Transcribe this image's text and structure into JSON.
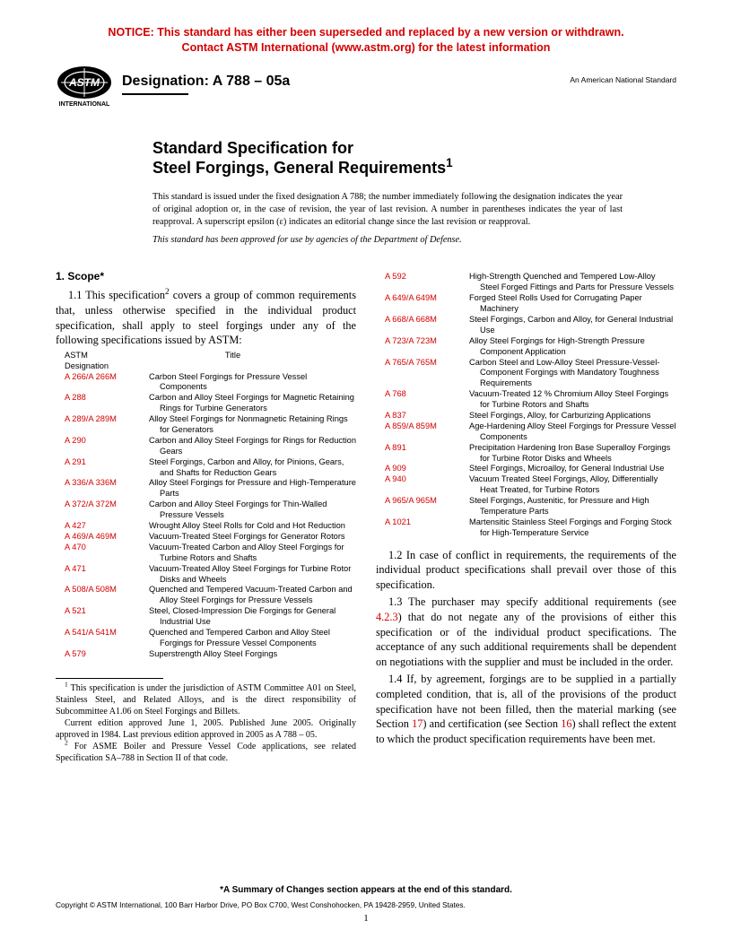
{
  "notice": {
    "line1": "NOTICE: This standard has either been superseded and replaced by a new version or withdrawn.",
    "line2": "Contact ASTM International (www.astm.org) for the latest information"
  },
  "header": {
    "designation_label": "Designation: A 788 – 05a",
    "ans_label": "An American National Standard",
    "logo_text_top": "ASTM",
    "logo_text_bottom": "INTERNATIONAL"
  },
  "title": {
    "line1": "Standard Specification for",
    "line2_main": "Steel Forgings, General Requirements",
    "line2_sup": "1"
  },
  "issuance": "This standard is issued under the fixed designation A 788; the number immediately following the designation indicates the year of original adoption or, in the case of revision, the year of last revision. A number in parentheses indicates the year of last reapproval. A superscript epsilon (ε) indicates an editorial change since the last revision or reapproval.",
  "dod": "This standard has been approved for use by agencies of the Department of Defense.",
  "scope": {
    "heading": "1. Scope*",
    "p1_a": "1.1 This specification",
    "p1_sup": "2",
    "p1_b": " covers a group of common requirements that, unless otherwise specified in the individual product specification, shall apply to steel forgings under any of the following specifications issued by ASTM:",
    "table_hdr_desig": "ASTM\nDesignation",
    "table_hdr_title": "Title",
    "p2": "1.2 In case of conflict in requirements, the requirements of the individual product specifications shall prevail over those of this specification.",
    "p3_a": "1.3 The purchaser may specify additional requirements (see ",
    "p3_ref": "4.2.3",
    "p3_b": ") that do not negate any of the provisions of either this specification or of the individual product specifications. The acceptance of any such additional requirements shall be dependent on negotiations with the supplier and must be included in the order.",
    "p4_a": "1.4 If, by agreement, forgings are to be supplied in a partially completed condition, that is, all of the provisions of the product specification have not been filled, then the material marking (see Section ",
    "p4_ref1": "17",
    "p4_b": ") and certification (see Section ",
    "p4_ref2": "16",
    "p4_c": ") shall reflect the extent to which the product specification requirements have been met."
  },
  "specs_col1": [
    {
      "d": "A 266/A 266M",
      "t": "Carbon Steel Forgings for Pressure Vessel Components"
    },
    {
      "d": "A 288",
      "t": "Carbon and Alloy Steel Forgings for Magnetic Retaining Rings for Turbine Generators"
    },
    {
      "d": "A 289/A 289M",
      "t": "Alloy Steel Forgings for Nonmagnetic Retaining Rings for Generators"
    },
    {
      "d": "A 290",
      "t": "Carbon and Alloy Steel Forgings for Rings for Reduction Gears"
    },
    {
      "d": "A 291",
      "t": "Steel Forgings, Carbon and Alloy, for Pinions, Gears, and Shafts for Reduction Gears"
    },
    {
      "d": "A 336/A 336M",
      "t": "Alloy Steel Forgings for Pressure and High-Temperature Parts"
    },
    {
      "d": "A 372/A 372M",
      "t": "Carbon and Alloy Steel Forgings for Thin-Walled Pressure Vessels"
    },
    {
      "d": "A 427",
      "t": "Wrought Alloy Steel Rolls for Cold and Hot Reduction"
    },
    {
      "d": "A 469/A 469M",
      "t": "Vacuum-Treated Steel Forgings for Generator Rotors"
    },
    {
      "d": "A 470",
      "t": "Vacuum-Treated Carbon and Alloy Steel Forgings for Turbine Rotors and Shafts"
    },
    {
      "d": "A 471",
      "t": "Vacuum-Treated Alloy Steel Forgings for Turbine Rotor Disks and Wheels"
    },
    {
      "d": "A 508/A 508M",
      "t": "Quenched and Tempered Vacuum-Treated Carbon and Alloy Steel Forgings for Pressure Vessels"
    },
    {
      "d": "A 521",
      "t": "Steel, Closed-Impression Die Forgings for General Industrial Use"
    },
    {
      "d": "A 541/A 541M",
      "t": "Quenched and Tempered Carbon and Alloy Steel Forgings for Pressure Vessel Components"
    },
    {
      "d": "A 579",
      "t": "Superstrength Alloy Steel Forgings"
    }
  ],
  "specs_col2": [
    {
      "d": "A 592",
      "t": "High-Strength Quenched and Tempered Low-Alloy Steel Forged Fittings and Parts for Pressure Vessels"
    },
    {
      "d": "A 649/A 649M",
      "t": "Forged Steel Rolls Used for Corrugating Paper Machinery"
    },
    {
      "d": "A 668/A 668M",
      "t": "Steel Forgings, Carbon and Alloy, for General Industrial Use"
    },
    {
      "d": "A 723/A 723M",
      "t": "Alloy Steel Forgings for High-Strength Pressure Component Application"
    },
    {
      "d": "A 765/A 765M",
      "t": "Carbon Steel and Low-Alloy Steel Pressure-Vessel-Component Forgings with Mandatory Toughness Requirements"
    },
    {
      "d": "A 768",
      "t": "Vacuum-Treated 12 % Chromium Alloy Steel Forgings for Turbine Rotors and Shafts"
    },
    {
      "d": "A 837",
      "t": "Steel Forgings, Alloy, for Carburizing Applications"
    },
    {
      "d": "A 859/A 859M",
      "t": "Age-Hardening Alloy Steel Forgings for Pressure Vessel Components"
    },
    {
      "d": "A 891",
      "t": "Precipitation Hardening Iron Base Superalloy Forgings for Turbine Rotor Disks and Wheels"
    },
    {
      "d": "A 909",
      "t": "Steel Forgings, Microalloy, for General Industrial Use"
    },
    {
      "d": "A 940",
      "t": "Vacuum Treated Steel Forgings, Alloy, Differentially Heat Treated, for Turbine Rotors"
    },
    {
      "d": "A 965/A 965M",
      "t": "Steel Forgings, Austenitic, for Pressure and High Temperature Parts"
    },
    {
      "d": "A 1021",
      "t": "Martensitic Stainless Steel Forgings and Forging Stock for High-Temperature Service"
    }
  ],
  "footnotes": {
    "f1_sup": "1",
    "f1": " This specification is under the jurisdiction of ASTM Committee A01 on Steel, Stainless Steel, and Related Alloys, and is the direct responsibility of Subcommittee A1.06 on Steel Forgings and Billets.",
    "f1b": "Current edition approved June 1, 2005. Published June 2005. Originally approved in 1984. Last previous edition approved in 2005 as A 788 – 05.",
    "f2_sup": "2",
    "f2": " For ASME Boiler and Pressure Vessel Code applications, see related Specification SA–788 in Section II of that code."
  },
  "summary_note": "*A Summary of Changes section appears at the end of this standard.",
  "copyright": "Copyright © ASTM International, 100 Barr Harbor Drive, PO Box C700, West Conshohocken, PA 19428-2959, United States.",
  "page_number": "1",
  "colors": {
    "red": "#d40000",
    "black": "#000000"
  }
}
